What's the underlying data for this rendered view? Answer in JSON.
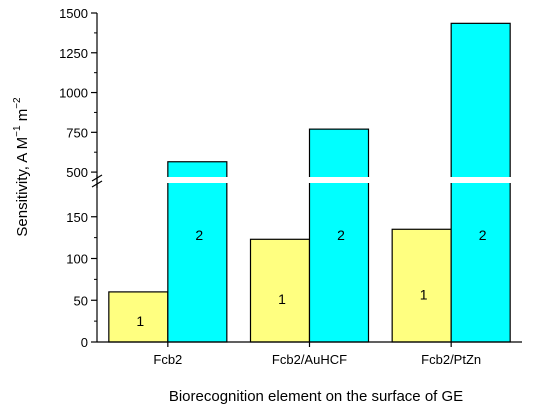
{
  "chart_data": {
    "type": "bar",
    "xlabel": "Biorecognition element on the surface of GE",
    "ylabel": {
      "prefix": "Sensitivity, A M",
      "exp1": "−1",
      "mid": " m",
      "exp2": "−2"
    },
    "categories": [
      "Fcb2",
      "Fcb2/AuHCF",
      "Fcb2/PtZn"
    ],
    "series": [
      {
        "name": "1",
        "color": "#ffff80",
        "values": [
          60,
          123,
          135
        ]
      },
      {
        "name": "2",
        "color": "#00ffff",
        "values": [
          565,
          770,
          1435
        ]
      }
    ],
    "y_axis": {
      "broken": true,
      "lower_range": [
        0,
        200
      ],
      "upper_range": [
        400,
        1500
      ],
      "lower_ticks": [
        0,
        50,
        100,
        150
      ],
      "upper_ticks": [
        500,
        750,
        1000,
        1250,
        1500
      ]
    },
    "grid": false
  }
}
